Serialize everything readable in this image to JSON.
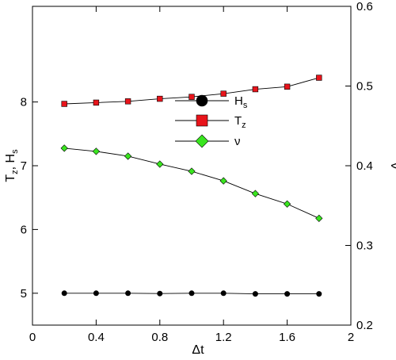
{
  "chart_data": {
    "type": "line",
    "x": [
      0.2,
      0.4,
      0.6,
      0.8,
      1.0,
      1.2,
      1.4,
      1.6,
      1.8
    ],
    "xlim": [
      0,
      2
    ],
    "ylim_left": [
      4.5,
      9.5
    ],
    "ylim_right": [
      0.2,
      0.6
    ],
    "x_ticks": [
      0,
      0.4,
      0.8,
      1.2,
      1.6,
      2
    ],
    "x_tick_labels": [
      "0",
      "0.4",
      "0.8",
      "1.2",
      "1.6",
      "2"
    ],
    "y_left_ticks": [
      5,
      6,
      7,
      8
    ],
    "y_left_tick_labels": [
      "5",
      "6",
      "7",
      "8"
    ],
    "y_right_ticks": [
      0.2,
      0.3,
      0.4,
      0.5,
      0.6
    ],
    "y_right_tick_labels": [
      "0.2",
      "0.3",
      "0.4",
      "0.5",
      "0.6"
    ],
    "xlabel": "Δt",
    "ylabel_left": {
      "main": "T",
      "sub1": "z",
      "sep": ", H",
      "sub2": "s"
    },
    "ylabel_right": "ν",
    "grid": false,
    "legend_position": "center",
    "series": [
      {
        "name": {
          "main": "H",
          "sub": "s"
        },
        "axis": "left",
        "marker": "circle",
        "color": "#000000",
        "values": [
          5.0,
          5.0,
          5.0,
          4.995,
          5.0,
          5.0,
          4.99,
          4.99,
          4.99
        ]
      },
      {
        "name": {
          "main": "T",
          "sub": "z"
        },
        "axis": "left",
        "marker": "square",
        "color": "#e8141b",
        "values": [
          7.97,
          7.99,
          8.01,
          8.05,
          8.08,
          8.13,
          8.2,
          8.24,
          8.38
        ]
      },
      {
        "name": {
          "main": "ν",
          "sub": ""
        },
        "axis": "right",
        "marker": "diamond",
        "color": "#39e51f",
        "values": [
          0.422,
          0.418,
          0.412,
          0.402,
          0.393,
          0.381,
          0.365,
          0.352,
          0.334
        ]
      }
    ]
  }
}
